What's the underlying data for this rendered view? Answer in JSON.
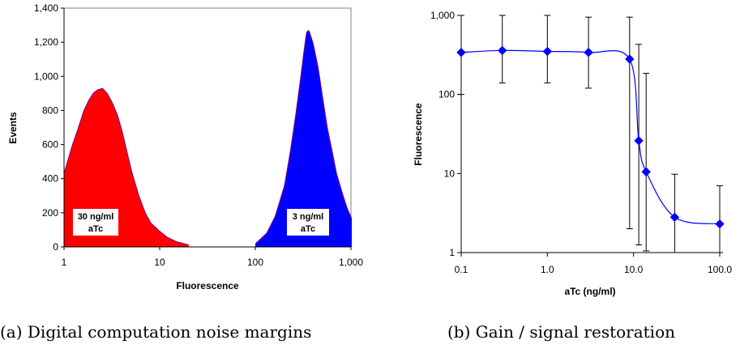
{
  "chart_data": [
    {
      "type": "histogram",
      "xlabel": "Fluorescence",
      "ylabel": "Events",
      "xscale": "log",
      "xlim": [
        1,
        1000
      ],
      "ylim": [
        0,
        1400
      ],
      "xtick_values": [
        1,
        10,
        100,
        1000
      ],
      "xtick_labels": [
        "1",
        "10",
        "100",
        "1,000"
      ],
      "ytick_values": [
        0,
        200,
        400,
        600,
        800,
        1000,
        1200,
        1400
      ],
      "ytick_labels": [
        "0",
        "200",
        "400",
        "600",
        "800",
        "1,000",
        "1,200",
        "1,400"
      ],
      "grid": false,
      "caption": "(a) Digital computation noise margins",
      "series": [
        {
          "color": "#ff0000",
          "annotation_line1": "30 ng/ml",
          "annotation_line2": "aTc",
          "x": [
            1,
            1.2,
            1.4,
            1.6,
            1.8,
            2.0,
            2.2,
            2.5,
            2.8,
            3.2,
            3.6,
            4.0,
            4.5,
            5,
            6,
            7,
            8,
            10,
            12,
            15,
            20
          ],
          "values": [
            440,
            590,
            700,
            800,
            860,
            900,
            920,
            930,
            900,
            840,
            770,
            680,
            560,
            450,
            300,
            200,
            140,
            90,
            55,
            30,
            12
          ]
        },
        {
          "color": "#0000ff",
          "annotation_line1": "3 ng/ml",
          "annotation_line2": "aTc",
          "x": [
            100,
            130,
            160,
            200,
            230,
            260,
            290,
            320,
            340,
            360,
            400,
            450,
            500,
            560,
            630,
            700,
            800,
            900,
            1000
          ],
          "values": [
            20,
            80,
            180,
            360,
            560,
            760,
            960,
            1150,
            1260,
            1270,
            1190,
            1050,
            880,
            700,
            560,
            430,
            320,
            230,
            170
          ]
        }
      ]
    },
    {
      "type": "line",
      "xlabel": "aTc (ng/ml)",
      "ylabel": "Fluorescence",
      "xscale": "log",
      "yscale": "log",
      "xlim": [
        0.1,
        100
      ],
      "ylim": [
        1,
        1000
      ],
      "xtick_values": [
        0.1,
        1,
        10,
        100
      ],
      "xtick_labels": [
        "0.1",
        "1.0",
        "10.0",
        "100.0"
      ],
      "ytick_values": [
        1,
        10,
        100,
        1000
      ],
      "ytick_labels": [
        "1",
        "10",
        "100",
        "1,000"
      ],
      "grid": false,
      "caption": "(b) Gain / signal restoration",
      "series": [
        {
          "color": "#0000ff",
          "marker": "diamond",
          "x": [
            0.1,
            0.3,
            1,
            3,
            9,
            11.5,
            14,
            30,
            100
          ],
          "values": [
            340,
            360,
            350,
            340,
            280,
            26,
            10.5,
            2.8,
            2.3
          ],
          "err_low": [
            100,
            140,
            140,
            120,
            2,
            1.25,
            1.05,
            1,
            1
          ],
          "err_high": [
            1000,
            1000,
            1000,
            950,
            950,
            430,
            185,
            9.8,
            7
          ]
        }
      ]
    }
  ]
}
